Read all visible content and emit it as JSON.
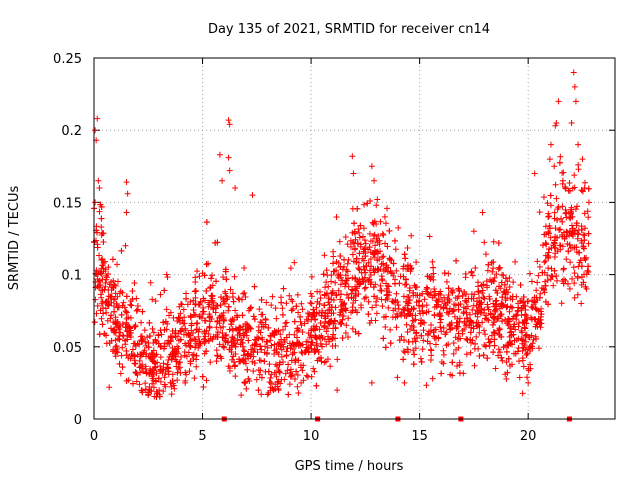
{
  "chart_data": {
    "type": "scatter",
    "title": "Day 135 of 2021, SRMTID for receiver cn14",
    "xlabel": "GPS time / hours",
    "ylabel": "SRMTID / TECUs",
    "xlim": [
      0,
      24
    ],
    "ylim": [
      0,
      0.25
    ],
    "xticks": [
      0,
      5,
      10,
      15,
      20
    ],
    "xtick_labels": [
      "0",
      "5",
      "10",
      "15",
      "20"
    ],
    "yticks": [
      0,
      0.05,
      0.1,
      0.15,
      0.2,
      0.25
    ],
    "ytick_labels": [
      "0",
      "0.05",
      "0.1",
      "0.15",
      "0.2",
      "0.25"
    ],
    "grid": true,
    "marker": "+",
    "color": "#ff0000",
    "zero_markers_x": [
      6.0,
      10.3,
      14.0,
      16.9,
      21.9
    ],
    "trend": {
      "x": [
        0,
        0.3,
        0.6,
        1.0,
        1.5,
        2.0,
        2.5,
        3.0,
        3.5,
        4.0,
        4.5,
        5.0,
        5.5,
        6.0,
        6.5,
        7.0,
        7.5,
        8.0,
        8.5,
        9.0,
        9.5,
        10.0,
        10.5,
        11.0,
        11.5,
        12.0,
        12.5,
        13.0,
        13.5,
        14.0,
        14.5,
        15.0,
        15.5,
        16.0,
        16.5,
        17.0,
        17.5,
        18.0,
        18.5,
        19.0,
        19.5,
        20.0,
        20.5,
        21.0,
        21.5,
        22.0,
        22.5,
        22.8
      ],
      "y": [
        0.11,
        0.1,
        0.085,
        0.065,
        0.06,
        0.05,
        0.04,
        0.042,
        0.047,
        0.055,
        0.06,
        0.065,
        0.075,
        0.07,
        0.055,
        0.05,
        0.05,
        0.048,
        0.045,
        0.048,
        0.052,
        0.058,
        0.065,
        0.075,
        0.085,
        0.1,
        0.105,
        0.11,
        0.1,
        0.085,
        0.078,
        0.075,
        0.072,
        0.07,
        0.068,
        0.07,
        0.072,
        0.075,
        0.075,
        0.07,
        0.065,
        0.06,
        0.09,
        0.12,
        0.135,
        0.13,
        0.12,
        0.125
      ]
    },
    "spread": 0.018,
    "points_per_hour": 130,
    "outliers": [
      {
        "x": 0.05,
        "y": 0.2
      },
      {
        "x": 0.1,
        "y": 0.193
      },
      {
        "x": 0.15,
        "y": 0.208
      },
      {
        "x": 0.2,
        "y": 0.165
      },
      {
        "x": 0.25,
        "y": 0.16
      },
      {
        "x": 0.05,
        "y": 0.15
      },
      {
        "x": 1.5,
        "y": 0.164
      },
      {
        "x": 1.55,
        "y": 0.156
      },
      {
        "x": 1.5,
        "y": 0.143
      },
      {
        "x": 1.45,
        "y": 0.12
      },
      {
        "x": 5.8,
        "y": 0.183
      },
      {
        "x": 6.2,
        "y": 0.181
      },
      {
        "x": 6.25,
        "y": 0.172
      },
      {
        "x": 6.2,
        "y": 0.207
      },
      {
        "x": 6.25,
        "y": 0.204
      },
      {
        "x": 5.9,
        "y": 0.165
      },
      {
        "x": 6.5,
        "y": 0.16
      },
      {
        "x": 7.3,
        "y": 0.155
      },
      {
        "x": 11.9,
        "y": 0.182
      },
      {
        "x": 11.95,
        "y": 0.17
      },
      {
        "x": 12.8,
        "y": 0.175
      },
      {
        "x": 12.9,
        "y": 0.165
      },
      {
        "x": 13.0,
        "y": 0.148
      },
      {
        "x": 13.05,
        "y": 0.152
      },
      {
        "x": 17.9,
        "y": 0.143
      },
      {
        "x": 17.5,
        "y": 0.13
      },
      {
        "x": 13.4,
        "y": 0.14
      },
      {
        "x": 21.0,
        "y": 0.18
      },
      {
        "x": 21.05,
        "y": 0.19
      },
      {
        "x": 21.3,
        "y": 0.205
      },
      {
        "x": 21.4,
        "y": 0.22
      },
      {
        "x": 21.2,
        "y": 0.175
      },
      {
        "x": 22.1,
        "y": 0.24
      },
      {
        "x": 22.15,
        "y": 0.23
      },
      {
        "x": 22.2,
        "y": 0.22
      },
      {
        "x": 22.0,
        "y": 0.205
      },
      {
        "x": 22.3,
        "y": 0.19
      },
      {
        "x": 22.5,
        "y": 0.18
      },
      {
        "x": 20.3,
        "y": 0.17
      },
      {
        "x": 21.6,
        "y": 0.165
      },
      {
        "x": 22.6,
        "y": 0.16
      },
      {
        "x": 22.8,
        "y": 0.15
      }
    ],
    "low_points": [
      {
        "x": 2.5,
        "y": 0.017
      },
      {
        "x": 3.0,
        "y": 0.02
      },
      {
        "x": 4.2,
        "y": 0.025
      },
      {
        "x": 8.0,
        "y": 0.017
      },
      {
        "x": 8.5,
        "y": 0.02
      },
      {
        "x": 9.8,
        "y": 0.03
      },
      {
        "x": 11.2,
        "y": 0.02
      },
      {
        "x": 12.8,
        "y": 0.025
      },
      {
        "x": 14.3,
        "y": 0.025
      },
      {
        "x": 15.6,
        "y": 0.028
      },
      {
        "x": 16.5,
        "y": 0.03
      },
      {
        "x": 18.5,
        "y": 0.035
      },
      {
        "x": 20.0,
        "y": 0.025
      },
      {
        "x": 0.7,
        "y": 0.022
      }
    ]
  }
}
